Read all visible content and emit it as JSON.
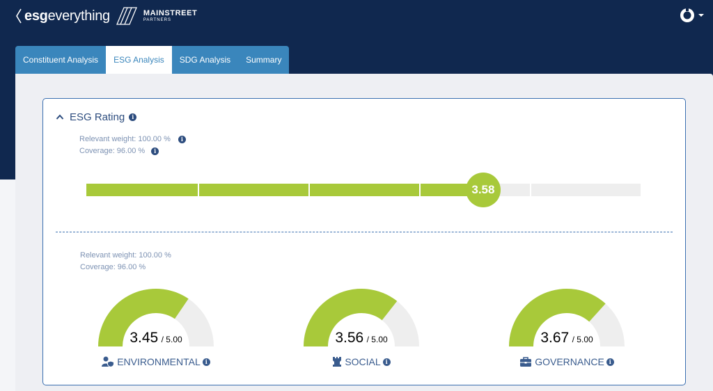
{
  "brand": {
    "name_bold": "esg",
    "name_rest": "everything",
    "partner_name": "MAINSTREET",
    "partner_sub": "PARTNERS"
  },
  "header": {
    "user_icon": "user-circle-icon"
  },
  "tabs": [
    {
      "label": "Constituent Analysis",
      "active": false
    },
    {
      "label": "ESG Analysis",
      "active": true
    },
    {
      "label": "SDG Analysis",
      "active": false
    },
    {
      "label": "Summary",
      "active": false
    }
  ],
  "card": {
    "title": "ESG Rating",
    "overall": {
      "relevant_weight": "Relevant weight: 100.00 %",
      "coverage": "Coverage: 96.00 %",
      "score": "3.58",
      "score_value": 3.58,
      "max_value": 5
    },
    "pillars_meta": {
      "relevant_weight": "Relevant weight: 100.00 %",
      "coverage": "Coverage: 96.00 %"
    },
    "pillars": [
      {
        "label": "ENVIRONMENTAL",
        "score": "3.45",
        "score_value": 3.45,
        "max": "/ 5.00",
        "max_value": 5,
        "icon": "user-shield-icon"
      },
      {
        "label": "SOCIAL",
        "score": "3.56",
        "score_value": 3.56,
        "max": "/ 5.00",
        "max_value": 5,
        "icon": "chess-rook-icon"
      },
      {
        "label": "GOVERNANCE",
        "score": "3.67",
        "score_value": 3.67,
        "max": "/ 5.00",
        "max_value": 5,
        "icon": "briefcase-icon"
      }
    ]
  },
  "colors": {
    "navy": "#10284f",
    "tab_blue": "#3a86bc",
    "score_green": "#a8c93a",
    "track_grey": "#eeeeee"
  }
}
